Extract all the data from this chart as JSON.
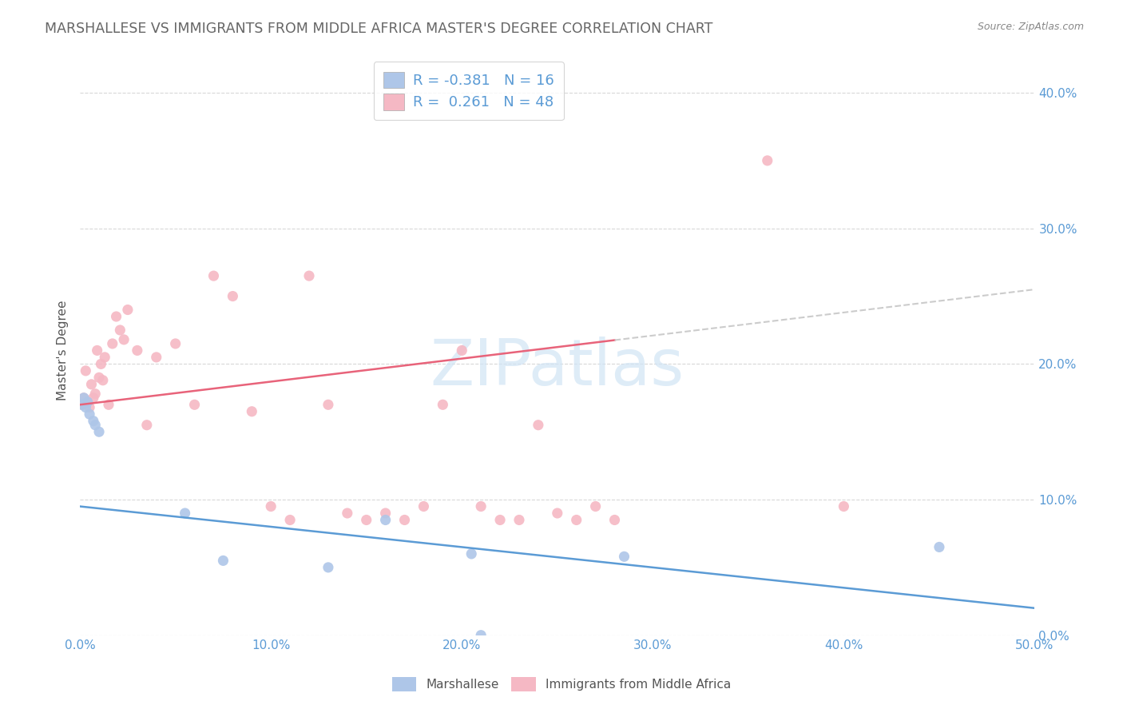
{
  "title": "MARSHALLESE VS IMMIGRANTS FROM MIDDLE AFRICA MASTER'S DEGREE CORRELATION CHART",
  "source": "Source: ZipAtlas.com",
  "ylabel": "Master's Degree",
  "watermark": "ZIPatlas",
  "blue_R": -0.381,
  "blue_N": 16,
  "pink_R": 0.261,
  "pink_N": 48,
  "xlim": [
    0.0,
    0.5
  ],
  "ylim": [
    0.0,
    0.42
  ],
  "yticks": [
    0.0,
    0.1,
    0.2,
    0.3,
    0.4
  ],
  "xticks": [
    0.0,
    0.1,
    0.2,
    0.3,
    0.4,
    0.5
  ],
  "blue_line_color": "#5b9bd5",
  "pink_line_color": "#e8637a",
  "blue_scatter_color": "#aec6e8",
  "pink_scatter_color": "#f5b8c4",
  "background_color": "#ffffff",
  "grid_color": "#d8d8d8",
  "tick_color": "#5b9bd5",
  "title_color": "#666666",
  "source_color": "#888888",
  "ylabel_color": "#555555",
  "legend_label_color": "#5b9bd5",
  "bottom_legend_color": "#555555",
  "blue_x": [
    0.001,
    0.002,
    0.003,
    0.004,
    0.005,
    0.007,
    0.008,
    0.01,
    0.055,
    0.075,
    0.13,
    0.16,
    0.21,
    0.45,
    0.285,
    0.205
  ],
  "blue_y": [
    0.17,
    0.175,
    0.168,
    0.172,
    0.163,
    0.158,
    0.155,
    0.15,
    0.09,
    0.055,
    0.05,
    0.085,
    0.0,
    0.065,
    0.058,
    0.06
  ],
  "pink_x": [
    0.001,
    0.002,
    0.003,
    0.004,
    0.005,
    0.006,
    0.007,
    0.008,
    0.009,
    0.01,
    0.011,
    0.012,
    0.013,
    0.015,
    0.017,
    0.019,
    0.021,
    0.023,
    0.025,
    0.03,
    0.035,
    0.04,
    0.05,
    0.06,
    0.07,
    0.08,
    0.09,
    0.1,
    0.11,
    0.12,
    0.13,
    0.14,
    0.15,
    0.16,
    0.17,
    0.18,
    0.19,
    0.2,
    0.21,
    0.22,
    0.23,
    0.24,
    0.25,
    0.26,
    0.27,
    0.28,
    0.36,
    0.4
  ],
  "pink_y": [
    0.17,
    0.175,
    0.195,
    0.172,
    0.168,
    0.185,
    0.175,
    0.178,
    0.21,
    0.19,
    0.2,
    0.188,
    0.205,
    0.17,
    0.215,
    0.235,
    0.225,
    0.218,
    0.24,
    0.21,
    0.155,
    0.205,
    0.215,
    0.17,
    0.265,
    0.25,
    0.165,
    0.095,
    0.085,
    0.265,
    0.17,
    0.09,
    0.085,
    0.09,
    0.085,
    0.095,
    0.17,
    0.21,
    0.095,
    0.085,
    0.085,
    0.155,
    0.09,
    0.085,
    0.095,
    0.085,
    0.35,
    0.095
  ],
  "dashed_line_color": "#cccccc",
  "watermark_color": "#d0e4f5",
  "watermark_alpha": 0.7
}
